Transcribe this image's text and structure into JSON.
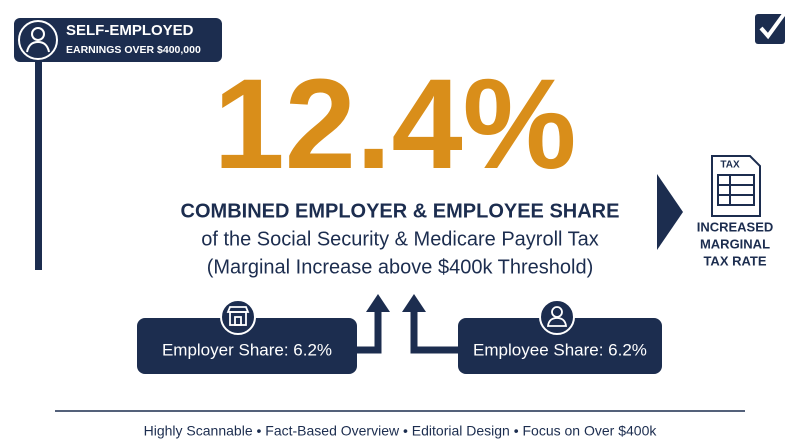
{
  "badge": {
    "title": "SELF-EMPLOYED",
    "subtitle": "EARNINGS OVER $400,000"
  },
  "headline": {
    "rate": "12.4%",
    "line1": "COMBINED EMPLOYER & EMPLOYEE SHARE",
    "line2": "of the Social Security & Medicare Payroll Tax",
    "line3": "(Marginal Increase above $400k Threshold)"
  },
  "side": {
    "form_label": "TAX",
    "lines": [
      "INCREASED",
      "MARGINAL",
      "TAX RATE"
    ]
  },
  "shares": {
    "employer": "Employer Share: 6.2%",
    "employee": "Employee Share: 6.2%"
  },
  "footer": "Highly Scannable • Fact-Based Overview • Editorial Design • Focus on Over $400k"
}
